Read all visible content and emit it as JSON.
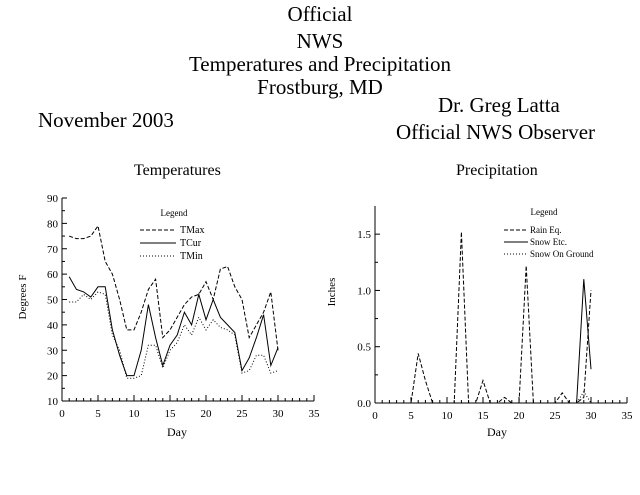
{
  "header": {
    "lines": [
      "Official",
      "NWS",
      "Temperatures and Precipitation",
      "Frostburg, MD"
    ],
    "observer_name": "Dr. Greg Latta",
    "observer_title": "Official NWS Observer",
    "month": "November  2003"
  },
  "chart_data": [
    {
      "type": "line",
      "title": "Temperatures",
      "xlabel": "Day",
      "ylabel": "Degrees F",
      "xlim": [
        0,
        35
      ],
      "ylim": [
        10,
        90
      ],
      "xticks": [
        0,
        5,
        10,
        15,
        20,
        25,
        30,
        35
      ],
      "yticks": [
        10,
        20,
        30,
        40,
        50,
        60,
        70,
        80,
        90
      ],
      "legend_title": "Legend",
      "legend_position": "top-right",
      "grid": false,
      "x": [
        1,
        2,
        3,
        4,
        5,
        6,
        7,
        8,
        9,
        10,
        11,
        12,
        13,
        14,
        15,
        16,
        17,
        18,
        19,
        20,
        21,
        22,
        23,
        24,
        25,
        26,
        27,
        28,
        29,
        30
      ],
      "series": [
        {
          "name": "TMax",
          "dash": "dashed",
          "values": [
            75,
            74,
            74,
            75,
            79,
            65,
            60,
            50,
            38,
            38,
            45,
            54,
            58,
            35,
            38,
            43,
            48,
            51,
            52,
            57,
            50,
            62,
            63,
            55,
            50,
            35,
            40,
            45,
            53,
            30
          ]
        },
        {
          "name": "TCur",
          "dash": "solid",
          "values": [
            59,
            54,
            53,
            51,
            55,
            55,
            38,
            28,
            20,
            20,
            30,
            48,
            35,
            24,
            32,
            36,
            45,
            40,
            52,
            42,
            50,
            43,
            40,
            37,
            22,
            27,
            35,
            44,
            24,
            31
          ]
        },
        {
          "name": "TMin",
          "dash": "dotted",
          "values": [
            49,
            49,
            52,
            50,
            53,
            52,
            36,
            30,
            19,
            19,
            20,
            32,
            32,
            23,
            30,
            33,
            40,
            36,
            43,
            38,
            42,
            39,
            38,
            36,
            21,
            22,
            28,
            28,
            21,
            22
          ]
        }
      ]
    },
    {
      "type": "line",
      "title": "Precipitation",
      "xlabel": "Day",
      "ylabel": "Inches",
      "xlim": [
        0,
        35
      ],
      "ylim": [
        0,
        1.75
      ],
      "xticks": [
        0,
        5,
        10,
        15,
        20,
        25,
        30,
        35
      ],
      "yticks": [
        0.0,
        0.5,
        1.0,
        1.5
      ],
      "yticklabels": [
        "0.0",
        "0.5",
        "1.0",
        "1.5"
      ],
      "legend_title": "Legend",
      "legend_position": "top-right",
      "grid": false,
      "x": [
        1,
        2,
        3,
        4,
        5,
        6,
        7,
        8,
        9,
        10,
        11,
        12,
        13,
        14,
        15,
        16,
        17,
        18,
        19,
        20,
        21,
        22,
        23,
        24,
        25,
        26,
        27,
        28,
        29,
        30
      ],
      "series": [
        {
          "name": "Rain Eq.",
          "dash": "dashed",
          "values": [
            0,
            0,
            0,
            0,
            0,
            0.44,
            0.2,
            0,
            0,
            0,
            0,
            1.52,
            0,
            0,
            0.2,
            0,
            0,
            0.05,
            0,
            0,
            1.22,
            0,
            0,
            0,
            0,
            0.09,
            0,
            0,
            0.05,
            1.0
          ]
        },
        {
          "name": "Snow Etc.",
          "dash": "solid",
          "values": [
            0,
            0,
            0,
            0,
            0,
            0,
            0,
            0,
            0,
            0,
            0,
            0,
            0,
            0,
            0,
            0,
            0,
            0,
            0,
            0,
            0,
            0,
            0,
            0,
            0,
            0,
            0,
            0,
            1.1,
            0.3
          ]
        },
        {
          "name": "Snow On Ground",
          "dash": "dotted",
          "values": [
            0,
            0,
            0,
            0,
            0,
            0,
            0,
            0,
            0,
            0,
            0,
            0,
            0,
            0,
            0,
            0,
            0,
            0,
            0,
            0,
            0,
            0,
            0,
            0,
            0,
            0,
            0,
            0,
            0.1,
            0
          ]
        }
      ]
    }
  ]
}
